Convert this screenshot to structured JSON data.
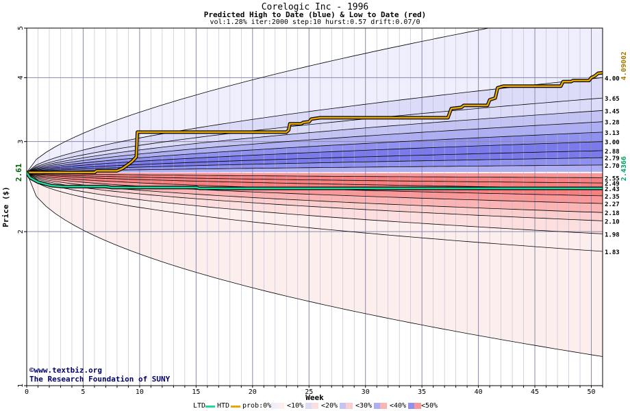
{
  "title": "Corelogic Inc - 1996",
  "subtitle": "Predicted High to Date (blue) &  Low to Date (red)",
  "params": "vol:1.28% iter:2000 step:10 hurst:0.57 drift:0.07/0",
  "credit": {
    "line1": "www.textbiz.org",
    "line2": "The Research Foundation of SUNY"
  },
  "legend": {
    "ltd": "LTD",
    "htd": "HTD",
    "prob": "prob:0%",
    "b10": "<10%",
    "b20": "<20%",
    "b30": "<30%",
    "b40": "<40%",
    "b50": "<50%"
  },
  "colors": {
    "ltd_line": "#20d8a0",
    "htd_line": "#e8a800",
    "start_label": "#006000",
    "htd_label": "#a07800",
    "ltd_label": "#00a060",
    "blue_bands": [
      "#eeeefc",
      "#dcdcf8",
      "#c4c4f4",
      "#aeaef2",
      "#9090ee",
      "#7a7aea"
    ],
    "red_bands": [
      "#fdeeee",
      "#fcdede",
      "#fbcece",
      "#fab4b4",
      "#f89898",
      "#f68080"
    ]
  },
  "chart_data": {
    "type": "area",
    "xlabel": "Week",
    "ylabel": "Price ($)",
    "xlim": [
      0,
      51
    ],
    "ylim": [
      1,
      5
    ],
    "y_scale": "log",
    "grid": true,
    "xticks": [
      0,
      5,
      10,
      15,
      20,
      25,
      30,
      35,
      40,
      45,
      50
    ],
    "yticks": [
      1,
      2,
      3,
      4,
      5
    ],
    "start_price": 2.61,
    "start_label": "2.61",
    "final_htd": 4.09002,
    "final_htd_label": "4.09002",
    "final_ltd": 2.4366,
    "final_ltd_label": "2.4366",
    "band_ends": [
      4.0,
      3.65,
      3.45,
      3.28,
      3.13,
      3.0,
      2.88,
      2.79,
      2.7,
      2.55,
      2.49,
      2.43,
      2.35,
      2.27,
      2.18,
      2.1,
      1.98,
      1.83
    ],
    "band_end_labels": [
      "4.00",
      "3.65",
      "3.45",
      "3.28",
      "3.13",
      "3.00",
      "2.88",
      "2.79",
      "2.70",
      "2.55",
      "2.49",
      "2.43",
      "2.35",
      "2.27",
      "2.18",
      "2.10",
      "1.98",
      "1.83"
    ],
    "upper_envelope_end": 5.5,
    "lower_envelope_end": 1.14,
    "blue_band_prob": [
      "0%",
      "<10%",
      "<20%",
      "<30%",
      "<40%",
      "<50%"
    ],
    "red_band_prob": [
      "0%",
      "<10%",
      "<20%",
      "<30%",
      "<40%",
      "<50%"
    ],
    "htd_series": [
      [
        0,
        2.61
      ],
      [
        6,
        2.61
      ],
      [
        6.2,
        2.63
      ],
      [
        8,
        2.63
      ],
      [
        8.5,
        2.66
      ],
      [
        9.3,
        2.74
      ],
      [
        9.7,
        2.8
      ],
      [
        9.8,
        3.13
      ],
      [
        23,
        3.13
      ],
      [
        23.2,
        3.16
      ],
      [
        23.3,
        3.25
      ],
      [
        24.3,
        3.25
      ],
      [
        24.5,
        3.27
      ],
      [
        25,
        3.28
      ],
      [
        25.2,
        3.32
      ],
      [
        26,
        3.34
      ],
      [
        37.3,
        3.34
      ],
      [
        37.6,
        3.48
      ],
      [
        38.5,
        3.5
      ],
      [
        38.7,
        3.53
      ],
      [
        40.8,
        3.53
      ],
      [
        41,
        3.62
      ],
      [
        41.5,
        3.65
      ],
      [
        41.7,
        3.82
      ],
      [
        42.2,
        3.85
      ],
      [
        47.3,
        3.85
      ],
      [
        47.5,
        3.93
      ],
      [
        48.2,
        3.93
      ],
      [
        48.4,
        3.95
      ],
      [
        49.8,
        3.95
      ],
      [
        50,
        4.0
      ],
      [
        50.3,
        4.03
      ],
      [
        50.6,
        4.08
      ],
      [
        51,
        4.09
      ]
    ],
    "ltd_series": [
      [
        0,
        2.61
      ],
      [
        0.3,
        2.55
      ],
      [
        1,
        2.5
      ],
      [
        1.6,
        2.48
      ],
      [
        2.2,
        2.46
      ],
      [
        3.2,
        2.45
      ],
      [
        7,
        2.45
      ],
      [
        7.5,
        2.44
      ],
      [
        12,
        2.44
      ],
      [
        15,
        2.44
      ],
      [
        15.3,
        2.43
      ],
      [
        51,
        2.43
      ]
    ]
  }
}
